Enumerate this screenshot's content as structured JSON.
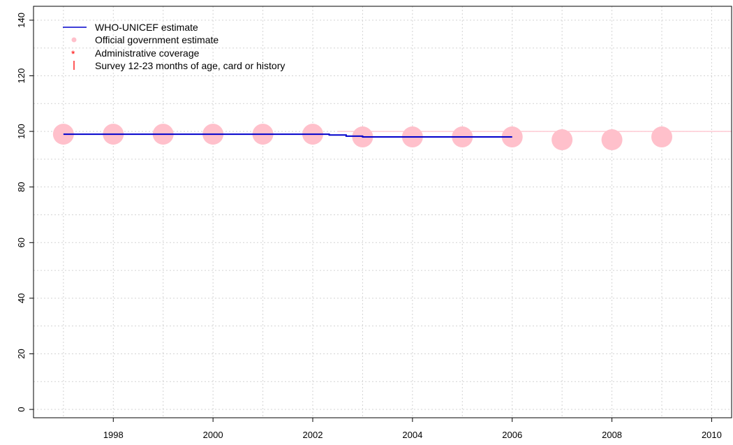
{
  "chart_data": {
    "type": "line",
    "xlim": [
      1996.4,
      2010.4
    ],
    "ylim": [
      -3,
      145
    ],
    "x_ticks": [
      1998,
      2000,
      2002,
      2004,
      2006,
      2008,
      2010
    ],
    "y_ticks": [
      0,
      20,
      40,
      60,
      80,
      100,
      120,
      140
    ],
    "x_grid": [
      1997,
      1998,
      1999,
      2000,
      2001,
      2002,
      2003,
      2004,
      2005,
      2006,
      2007,
      2008,
      2009,
      2010
    ],
    "y_grid": [
      0,
      10,
      20,
      30,
      40,
      50,
      60,
      70,
      80,
      90,
      100,
      110,
      120,
      130,
      140
    ],
    "grid": true,
    "legend_position": "top-left",
    "reference_line": {
      "y": 100,
      "color": "#ffc0cb"
    },
    "series": [
      {
        "name": "WHO-UNICEF estimate",
        "style": "step-line",
        "color": "#0000cc",
        "points": [
          {
            "x": 1997,
            "y": 99
          },
          {
            "x": 1998,
            "y": 99
          },
          {
            "x": 1999,
            "y": 99
          },
          {
            "x": 2000,
            "y": 99
          },
          {
            "x": 2001,
            "y": 99
          },
          {
            "x": 2002,
            "y": 99
          },
          {
            "x": 2002.33,
            "y": 98.7
          },
          {
            "x": 2002.67,
            "y": 98.3
          },
          {
            "x": 2003,
            "y": 98
          },
          {
            "x": 2004,
            "y": 98
          },
          {
            "x": 2005,
            "y": 98
          },
          {
            "x": 2006,
            "y": 98
          }
        ]
      },
      {
        "name": "Official government estimate",
        "style": "points",
        "color": "#ffc0cb",
        "points": [
          {
            "x": 1997,
            "y": 99
          },
          {
            "x": 1998,
            "y": 99
          },
          {
            "x": 1999,
            "y": 99
          },
          {
            "x": 2000,
            "y": 99
          },
          {
            "x": 2001,
            "y": 99
          },
          {
            "x": 2002,
            "y": 99
          },
          {
            "x": 2003,
            "y": 98
          },
          {
            "x": 2004,
            "y": 98
          },
          {
            "x": 2005,
            "y": 98
          },
          {
            "x": 2006,
            "y": 98
          },
          {
            "x": 2007,
            "y": 97
          },
          {
            "x": 2008,
            "y": 97
          },
          {
            "x": 2009,
            "y": 98
          }
        ]
      },
      {
        "name": "Administrative coverage",
        "style": "asterisk",
        "color": "#ff0000",
        "points": []
      },
      {
        "name": "Survey 12-23 months of age, card or history",
        "style": "vbar",
        "color": "#ff0000",
        "points": []
      }
    ],
    "legend": [
      {
        "label": "WHO-UNICEF estimate",
        "symbol": "line",
        "color": "#0000cc"
      },
      {
        "label": "Official government estimate",
        "symbol": "dot",
        "color": "#ffc0cb"
      },
      {
        "label": "Administrative coverage",
        "symbol": "asterisk",
        "color": "#ff0000"
      },
      {
        "label": "Survey 12-23 months of age, card or history",
        "symbol": "vbar",
        "color": "#ff0000"
      }
    ]
  }
}
